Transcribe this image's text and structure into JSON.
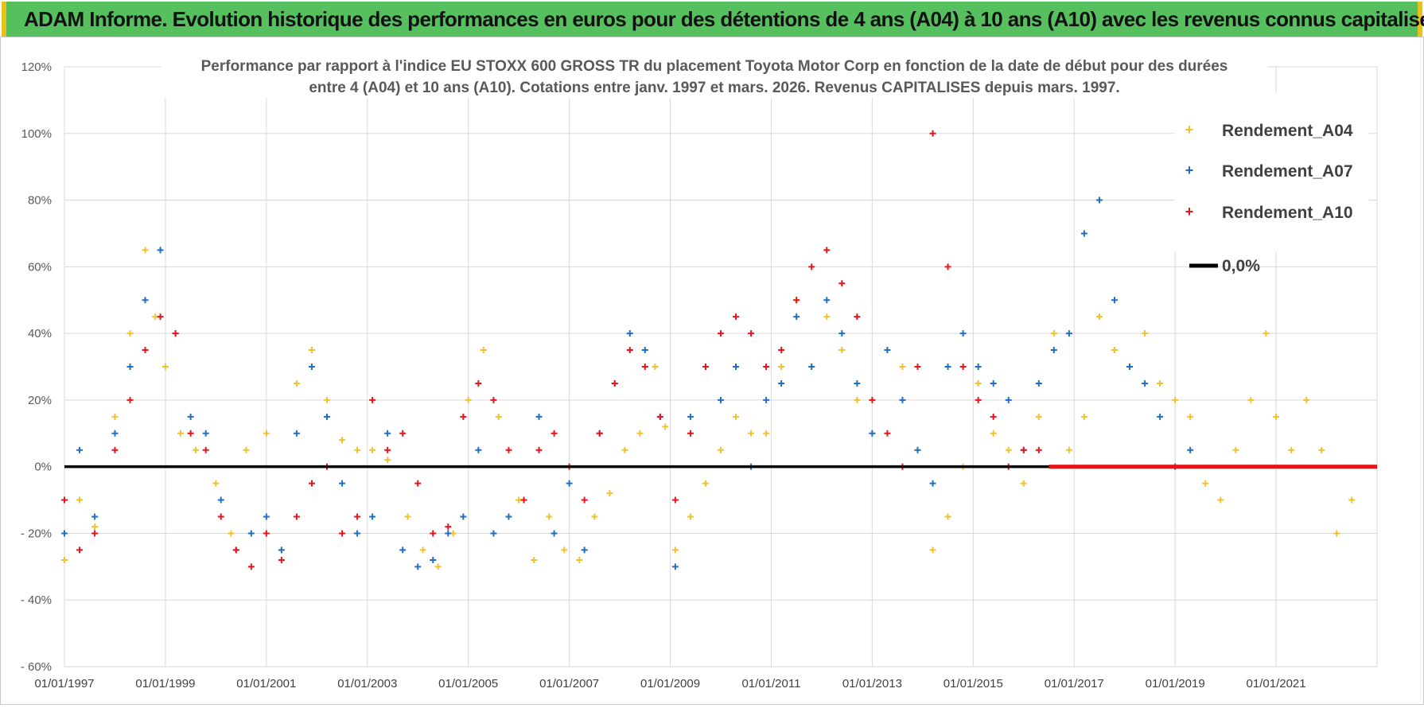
{
  "banner": {
    "title": "ADAM Informe. Evolution historique des performances en euros pour des détentions de 4 ans (A04) à 10 ans (A10) avec les revenus connus capitalisés",
    "background": "#56c05f",
    "edge_color": "#e8c21b"
  },
  "chart_data": {
    "type": "scatter",
    "title_line1": "Performance par rapport à l'indice EU STOXX 600 GROSS TR  du placement Toyota Motor Corp en fonction de la date de début pour des durées",
    "title_line2": "entre 4 (A04) et 10 ans (A10).  Cotations entre janv. 1997 et mars. 2026.  Revenus CAPITALISES depuis mars. 1997.",
    "xlabel": "",
    "ylabel": "",
    "xlim": [
      1997.0,
      2023.0
    ],
    "ylim": [
      -60,
      120
    ],
    "y_ticks": [
      120,
      100,
      80,
      60,
      40,
      20,
      0,
      -20,
      -40,
      -60
    ],
    "y_tick_labels": [
      "120%",
      "100%",
      "80%",
      "60%",
      "40%",
      "20%",
      "0%",
      "- 20%",
      "- 40%",
      "- 60%"
    ],
    "x_ticks": [
      1997,
      1999,
      2001,
      2003,
      2005,
      2007,
      2009,
      2011,
      2013,
      2015,
      2017,
      2019,
      2021
    ],
    "x_tick_labels": [
      "01/01/1997",
      "01/01/1999",
      "01/01/2001",
      "01/01/2003",
      "01/01/2005",
      "01/01/2007",
      "01/01/2009",
      "01/01/2011",
      "01/01/2013",
      "01/01/2015",
      "01/01/2017",
      "01/01/2019",
      "01/01/2021"
    ],
    "grid": true,
    "legend_position": "top-right",
    "series": [
      {
        "name": "Rendement_A04",
        "color": "#f2c12e",
        "marker": "+",
        "x": [
          1997.0,
          1997.3,
          1997.6,
          1998.0,
          1998.3,
          1998.6,
          1998.8,
          1999.0,
          1999.3,
          1999.6,
          2000.0,
          2000.3,
          2000.6,
          2001.0,
          2001.3,
          2001.6,
          2001.9,
          2002.2,
          2002.5,
          2002.8,
          2003.1,
          2003.4,
          2003.8,
          2004.1,
          2004.4,
          2004.7,
          2005.0,
          2005.3,
          2005.6,
          2006.0,
          2006.3,
          2006.6,
          2006.9,
          2007.2,
          2007.5,
          2007.8,
          2008.1,
          2008.4,
          2008.7,
          2008.9,
          2009.1,
          2009.4,
          2009.7,
          2010.0,
          2010.3,
          2010.6,
          2010.9,
          2011.2,
          2011.5,
          2011.8,
          2012.1,
          2012.4,
          2012.7,
          2013.0,
          2013.3,
          2013.6,
          2013.9,
          2014.2,
          2014.5,
          2014.8,
          2015.1,
          2015.4,
          2015.7,
          2016.0,
          2016.3,
          2016.6,
          2016.9,
          2017.2,
          2017.5,
          2017.8,
          2018.1,
          2018.4,
          2018.7,
          2019.0,
          2019.3,
          2019.6,
          2019.9,
          2020.2,
          2020.5,
          2020.8,
          2021.0,
          2021.3,
          2021.6,
          2021.9,
          2022.2,
          2022.5
        ],
        "y": [
          -28,
          -10,
          -18,
          15,
          40,
          65,
          45,
          30,
          10,
          5,
          -5,
          -20,
          5,
          10,
          -25,
          25,
          35,
          20,
          8,
          5,
          5,
          2,
          -15,
          -25,
          -30,
          -20,
          20,
          35,
          15,
          -10,
          -28,
          -15,
          -25,
          -28,
          -15,
          -8,
          5,
          10,
          30,
          12,
          -25,
          -15,
          -5,
          5,
          15,
          10,
          10,
          30,
          50,
          30,
          45,
          35,
          20,
          10,
          35,
          30,
          5,
          -25,
          -15,
          0,
          25,
          10,
          5,
          -5,
          15,
          40,
          5,
          15,
          45,
          35,
          30,
          40,
          25,
          20,
          15,
          -5,
          -10,
          5,
          20,
          40,
          15,
          5,
          20,
          5,
          -20,
          -10
        ]
      },
      {
        "name": "Rendement_A07",
        "color": "#1f6fc2",
        "marker": "+",
        "x": [
          1997.0,
          1997.3,
          1997.6,
          1998.0,
          1998.3,
          1998.6,
          1998.9,
          1999.2,
          1999.5,
          1999.8,
          2000.1,
          2000.4,
          2000.7,
          2001.0,
          2001.3,
          2001.6,
          2001.9,
          2002.2,
          2002.5,
          2002.8,
          2003.1,
          2003.4,
          2003.7,
          2004.0,
          2004.3,
          2004.6,
          2004.9,
          2005.2,
          2005.5,
          2005.8,
          2006.1,
          2006.4,
          2006.7,
          2007.0,
          2007.3,
          2007.6,
          2007.9,
          2008.2,
          2008.5,
          2008.8,
          2009.1,
          2009.4,
          2009.7,
          2010.0,
          2010.3,
          2010.6,
          2010.9,
          2011.2,
          2011.5,
          2011.8,
          2012.1,
          2012.4,
          2012.7,
          2013.0,
          2013.3,
          2013.6,
          2013.9,
          2014.2,
          2014.5,
          2014.8,
          2015.1,
          2015.4,
          2015.7,
          2016.0,
          2016.3,
          2016.6,
          2016.9,
          2017.2,
          2017.5,
          2017.8,
          2018.1,
          2018.4,
          2018.7,
          2019.0,
          2019.3
        ],
        "y": [
          -20,
          5,
          -15,
          10,
          30,
          50,
          65,
          40,
          15,
          10,
          -10,
          -25,
          -20,
          -15,
          -25,
          10,
          30,
          15,
          -5,
          -20,
          -15,
          10,
          -25,
          -30,
          -28,
          -20,
          -15,
          5,
          -20,
          -15,
          -10,
          15,
          -20,
          -5,
          -25,
          10,
          25,
          40,
          35,
          15,
          -30,
          15,
          30,
          20,
          30,
          0,
          20,
          25,
          45,
          30,
          50,
          40,
          25,
          10,
          35,
          20,
          5,
          -5,
          30,
          40,
          30,
          25,
          20,
          5,
          25,
          35,
          40,
          70,
          80,
          50,
          30,
          25,
          15,
          0,
          5
        ]
      },
      {
        "name": "Rendement_A10",
        "color": "#e8141a",
        "marker": "+",
        "x": [
          1997.0,
          1997.3,
          1997.6,
          1998.0,
          1998.3,
          1998.6,
          1998.9,
          1999.2,
          1999.5,
          1999.8,
          2000.1,
          2000.4,
          2000.7,
          2001.0,
          2001.3,
          2001.6,
          2001.9,
          2002.2,
          2002.5,
          2002.8,
          2003.1,
          2003.4,
          2003.7,
          2004.0,
          2004.3,
          2004.6,
          2004.9,
          2005.2,
          2005.5,
          2005.8,
          2006.1,
          2006.4,
          2006.7,
          2007.0,
          2007.3,
          2007.6,
          2007.9,
          2008.2,
          2008.5,
          2008.8,
          2009.1,
          2009.4,
          2009.7,
          2010.0,
          2010.3,
          2010.6,
          2010.9,
          2011.2,
          2011.5,
          2011.8,
          2012.1,
          2012.4,
          2012.7,
          2013.0,
          2013.3,
          2013.6,
          2013.9,
          2014.2,
          2014.5,
          2014.8,
          2015.1,
          2015.4,
          2015.7,
          2016.0,
          2016.3
        ],
        "y": [
          -10,
          -25,
          -20,
          5,
          20,
          35,
          45,
          40,
          10,
          5,
          -15,
          -25,
          -30,
          -20,
          -28,
          -15,
          -5,
          0,
          -20,
          -15,
          20,
          5,
          10,
          -5,
          -20,
          -18,
          15,
          25,
          20,
          5,
          -10,
          5,
          10,
          0,
          -10,
          10,
          25,
          35,
          30,
          15,
          -10,
          10,
          30,
          40,
          45,
          40,
          30,
          35,
          50,
          60,
          65,
          55,
          45,
          20,
          10,
          0,
          30,
          100,
          60,
          30,
          20,
          15,
          0,
          5,
          5
        ]
      }
    ],
    "zero_line": {
      "name": "0,0%",
      "color": "#000000",
      "y": 0,
      "x_range": [
        1997.0,
        2023.0
      ]
    },
    "a10_zero_segment": {
      "color": "#e8141a",
      "y": 0,
      "x_range": [
        2016.5,
        2023.0
      ]
    }
  }
}
